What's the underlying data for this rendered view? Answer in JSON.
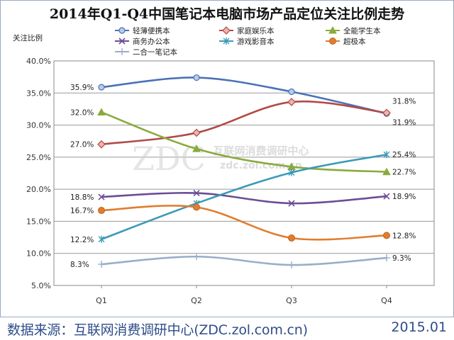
{
  "chart_data": {
    "type": "line",
    "title": "2014年Q1-Q4中国笔记本电脑市场产品定位关注比例走势",
    "ylabel": "关注比例",
    "categories": [
      "Q1",
      "Q2",
      "Q3",
      "Q4"
    ],
    "ylim": [
      5.0,
      40.0
    ],
    "yticks": [
      "5.0%",
      "10.0%",
      "15.0%",
      "20.0%",
      "25.0%",
      "30.0%",
      "35.0%",
      "40.0%"
    ],
    "grid": true,
    "legend_position": "top",
    "series": [
      {
        "name": "轻薄便携本",
        "values": [
          35.9,
          37.4,
          35.2,
          31.8
        ],
        "color": "#4a72b8",
        "marker": "circle",
        "labels": [
          "35.9%",
          "",
          "",
          "31.8%"
        ]
      },
      {
        "name": "家庭娱乐本",
        "values": [
          27.0,
          28.8,
          33.6,
          31.9
        ],
        "color": "#b24a46",
        "marker": "diamond",
        "labels": [
          "27.0%",
          "",
          "",
          "31.9%"
        ]
      },
      {
        "name": "全能学生本",
        "values": [
          32.0,
          26.3,
          23.5,
          22.7
        ],
        "color": "#8aaa3e",
        "marker": "triangle",
        "labels": [
          "32.0%",
          "",
          "",
          "22.7%"
        ]
      },
      {
        "name": "商务办公本",
        "values": [
          18.8,
          19.4,
          17.8,
          18.9
        ],
        "color": "#6b4d96",
        "marker": "x",
        "labels": [
          "18.8%",
          "",
          "",
          "18.9%"
        ]
      },
      {
        "name": "游戏影音本",
        "values": [
          12.2,
          17.8,
          22.6,
          25.4
        ],
        "color": "#3c9ab8",
        "marker": "star",
        "labels": [
          "12.2%",
          "",
          "",
          "25.4%"
        ]
      },
      {
        "name": "超极本",
        "values": [
          16.7,
          17.2,
          12.4,
          12.8
        ],
        "color": "#e07d2e",
        "marker": "dot",
        "labels": [
          "16.7%",
          "",
          "",
          "12.8%"
        ]
      },
      {
        "name": "二合一笔记本",
        "values": [
          8.3,
          9.5,
          8.2,
          9.3
        ],
        "color": "#98aecb",
        "marker": "plus",
        "labels": [
          "8.3%",
          "",
          "",
          "9.3%"
        ]
      }
    ],
    "watermark": "ZDC 互联网消费调研中心 zdc.zol.com.cn"
  },
  "footer": {
    "source": "数据来源：互联网消费调研中心(ZDC.zol.com.cn)",
    "date": "2015.01"
  }
}
